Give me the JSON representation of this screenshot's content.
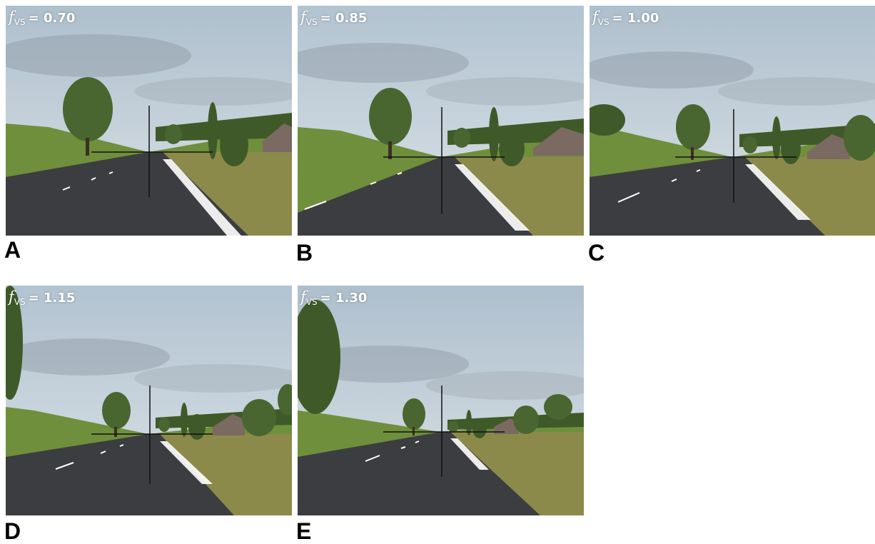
{
  "panels": [
    {
      "letter": "A",
      "label_f": "f",
      "label_sub": "VS",
      "label_value": "= 0.70",
      "fvs": 0.7
    },
    {
      "letter": "B",
      "label_f": "f",
      "label_sub": "VS",
      "label_value": "= 0.85",
      "fvs": 0.85
    },
    {
      "letter": "C",
      "label_f": "f",
      "label_sub": "VS",
      "label_value": "= 1.00",
      "fvs": 1.0
    },
    {
      "letter": "D",
      "label_f": "f",
      "label_sub": "VS",
      "label_value": "= 1.15",
      "fvs": 1.15
    },
    {
      "letter": "E",
      "label_f": "f",
      "label_sub": "VS",
      "label_value": "= 1.30",
      "fvs": 1.3
    }
  ],
  "colors": {
    "sky_top": "#b9c8d6",
    "sky_bottom": "#d9e1e6",
    "grass": "#6f8f3c",
    "grass_dry": "#8c8a4a",
    "road": "#3c3d40",
    "road_marking": "#ffffff",
    "tree": "#3f5a28",
    "crosshair": "#111111"
  }
}
